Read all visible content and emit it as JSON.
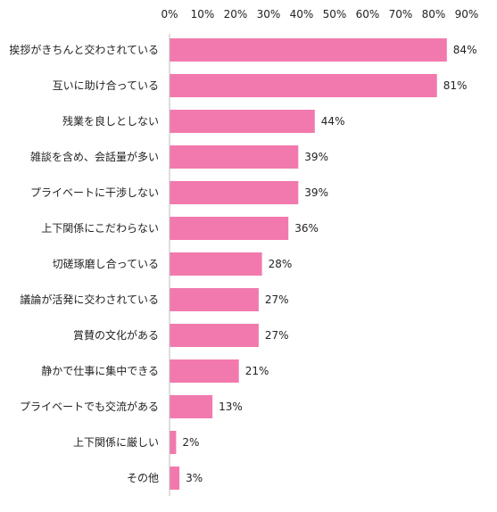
{
  "chart_data": {
    "type": "bar",
    "orientation": "horizontal",
    "title": "",
    "xlabel": "",
    "ylabel": "",
    "xlim": [
      0,
      90
    ],
    "x_ticks": [
      0,
      10,
      20,
      30,
      40,
      50,
      60,
      70,
      80,
      90
    ],
    "tick_suffix": "%",
    "x_axis_position": "top",
    "grid": false,
    "legend": "none",
    "bar_color": "#f279ad",
    "categories": [
      "挨拶がきちんと交わされている",
      "互いに助け合っている",
      "残業を良しとしない",
      "雑談を含め、会話量が多い",
      "プライベートに干渉しない",
      "上下関係にこだわらない",
      "切磋琢磨し合っている",
      "議論が活発に交わされている",
      "賞賛の文化がある",
      "静かで仕事に集中できる",
      "プライベートでも交流がある",
      "上下関係に厳しい",
      "その他"
    ],
    "values": [
      84,
      81,
      44,
      39,
      39,
      36,
      28,
      27,
      27,
      21,
      13,
      2,
      3
    ],
    "value_labels": [
      "84%",
      "81%",
      "44%",
      "39%",
      "39%",
      "36%",
      "28%",
      "27%",
      "27%",
      "21%",
      "13%",
      "2%",
      "3%"
    ]
  }
}
